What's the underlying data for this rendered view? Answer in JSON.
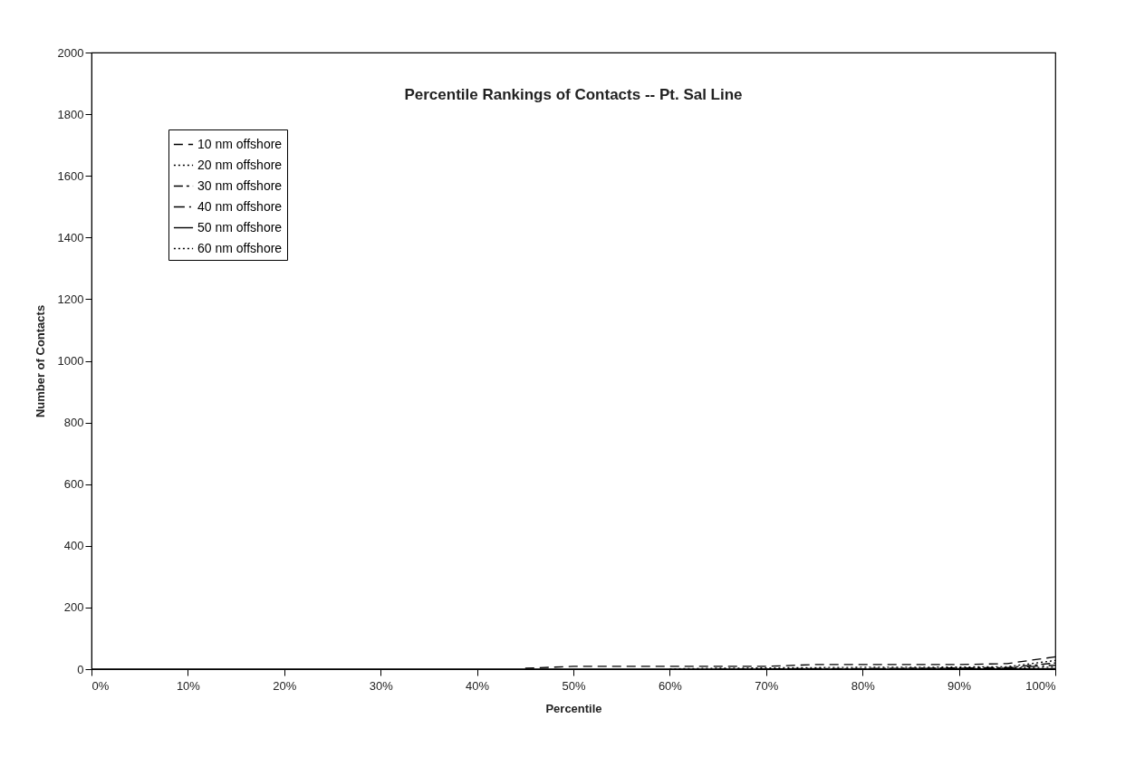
{
  "chart_data": {
    "type": "line",
    "title": "Percentile Rankings of Contacts -- Pt. Sal Line",
    "xlabel": "Percentile",
    "ylabel": "Number of Contacts",
    "x": [
      0,
      5,
      10,
      15,
      20,
      25,
      30,
      35,
      40,
      45,
      50,
      55,
      60,
      65,
      70,
      75,
      80,
      85,
      90,
      95,
      100
    ],
    "xlim": [
      0,
      100
    ],
    "xticks": [
      {
        "value": 0,
        "label": "0%"
      },
      {
        "value": 10,
        "label": "10%"
      },
      {
        "value": 20,
        "label": "20%"
      },
      {
        "value": 30,
        "label": "30%"
      },
      {
        "value": 40,
        "label": "40%"
      },
      {
        "value": 50,
        "label": "50%"
      },
      {
        "value": 60,
        "label": "60%"
      },
      {
        "value": 70,
        "label": "70%"
      },
      {
        "value": 80,
        "label": "80%"
      },
      {
        "value": 90,
        "label": "90%"
      },
      {
        "value": 100,
        "label": "100%"
      }
    ],
    "ylim": [
      0,
      2000
    ],
    "yticks": [
      0,
      200,
      400,
      600,
      800,
      1000,
      1200,
      1400,
      1600,
      1800,
      2000
    ],
    "grid": false,
    "legend": "top left",
    "marker": "none",
    "series": [
      {
        "name": "10 nm offshore",
        "color": "#000000",
        "line_style": "dashed",
        "x": [
          45,
          50,
          55,
          60,
          65,
          70,
          75,
          80,
          85,
          90,
          95,
          100
        ],
        "values": [
          3,
          9,
          9,
          9,
          9,
          9,
          15,
          15,
          15,
          15,
          18,
          40
        ]
      },
      {
        "name": "20 nm offshore",
        "color": "#000000",
        "line_style": "dotted",
        "x": [
          60,
          65,
          70,
          75,
          80,
          85,
          90,
          95,
          100
        ],
        "values": [
          1,
          3,
          4,
          5,
          6,
          6,
          7,
          8,
          28
        ]
      },
      {
        "name": "30 nm offshore",
        "color": "#000000",
        "line_style": "dashed",
        "x": [
          65,
          70,
          75,
          80,
          85,
          90,
          95,
          100
        ],
        "values": [
          0,
          1,
          2,
          2,
          3,
          4,
          5,
          20
        ]
      },
      {
        "name": "40 nm offshore",
        "color": "#000000",
        "line_style": "dashed",
        "x": [
          70,
          75,
          80,
          85,
          90,
          95,
          100
        ],
        "values": [
          0,
          1,
          1,
          2,
          3,
          4,
          13
        ]
      },
      {
        "name": "50 nm offshore",
        "color": "#000000",
        "line_style": "solid",
        "values": [
          0,
          0,
          0,
          0,
          0,
          0,
          0,
          0,
          0,
          0,
          0,
          0,
          0,
          0,
          0,
          0,
          0,
          0,
          1,
          1,
          2
        ]
      },
      {
        "name": "60 nm offshore",
        "color": "#000000",
        "line_style": "dotted",
        "x": [
          85,
          90,
          95,
          100
        ],
        "values": [
          1,
          2,
          3,
          7
        ]
      }
    ]
  }
}
